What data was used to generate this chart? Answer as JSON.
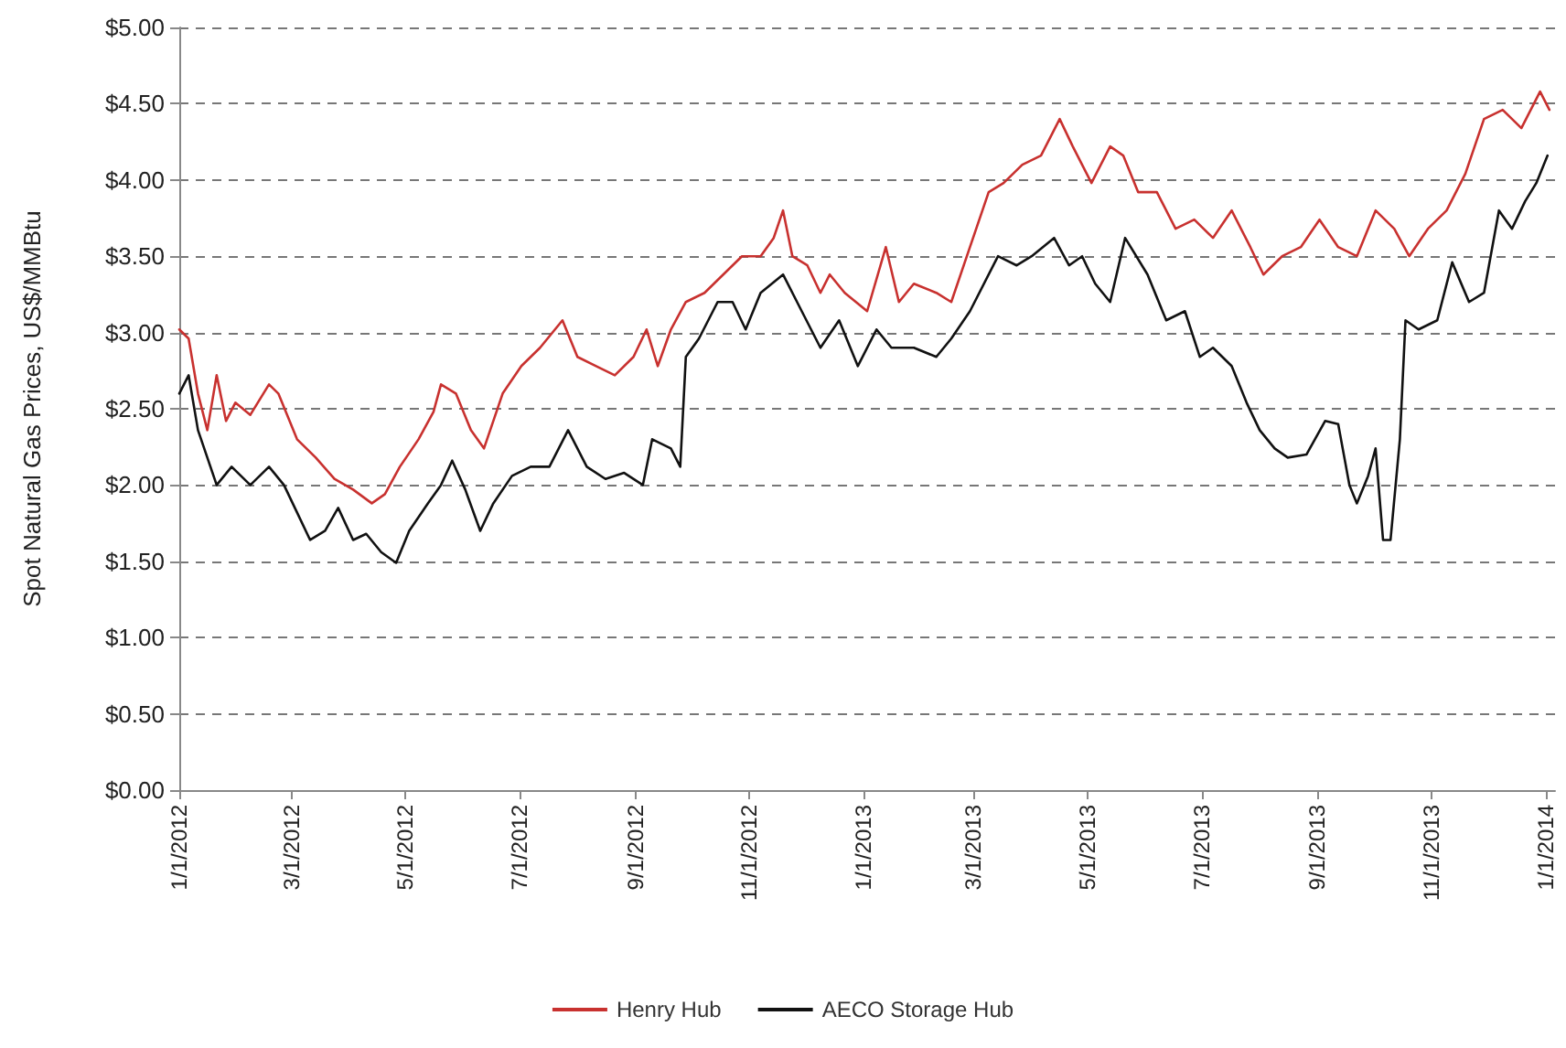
{
  "chart_data": {
    "type": "line",
    "ylabel": "Spot Natural Gas Prices, US$/MMBtu",
    "xlim": [
      "2012-01-01",
      "2014-01-06"
    ],
    "xticks": [
      {
        "value": "2012-01-01",
        "label": "1/1/2012"
      },
      {
        "value": "2012-03-01",
        "label": "3/1/2012"
      },
      {
        "value": "2012-05-01",
        "label": "5/1/2012"
      },
      {
        "value": "2012-07-01",
        "label": "7/1/2012"
      },
      {
        "value": "2012-09-01",
        "label": "9/1/2012"
      },
      {
        "value": "2012-11-01",
        "label": "11/1/2012"
      },
      {
        "value": "2013-01-01",
        "label": "1/1/2013"
      },
      {
        "value": "2013-03-01",
        "label": "3/1/2013"
      },
      {
        "value": "2013-05-01",
        "label": "5/1/2013"
      },
      {
        "value": "2013-07-01",
        "label": "7/1/2013"
      },
      {
        "value": "2013-09-01",
        "label": "9/1/2013"
      },
      {
        "value": "2013-11-01",
        "label": "11/1/2013"
      },
      {
        "value": "2014-01-01",
        "label": "1/1/2014"
      }
    ],
    "ylim": [
      0,
      5
    ],
    "yticks": [
      {
        "value": 0,
        "label": "$0.00"
      },
      {
        "value": 0.5,
        "label": "$0.50"
      },
      {
        "value": 1,
        "label": "$1.00"
      },
      {
        "value": 1.5,
        "label": "$1.50"
      },
      {
        "value": 2,
        "label": "$2.00"
      },
      {
        "value": 2.5,
        "label": "$2.50"
      },
      {
        "value": 3,
        "label": "$3.00"
      },
      {
        "value": 3.5,
        "label": "$3.50"
      },
      {
        "value": 4,
        "label": "$4.00"
      },
      {
        "value": 4.5,
        "label": "$4.50"
      },
      {
        "value": 5,
        "label": "$5.00"
      }
    ],
    "grid": "y",
    "legend": "bottom",
    "marker": "none",
    "line_style": "solid",
    "series": [
      {
        "name": "Henry Hub",
        "color": "#c8312f",
        "x": [
          "2012-01-01",
          "2012-01-06",
          "2012-01-11",
          "2012-01-16",
          "2012-01-21",
          "2012-01-26",
          "2012-01-31",
          "2012-02-08",
          "2012-02-18",
          "2012-02-23",
          "2012-03-04",
          "2012-03-14",
          "2012-03-24",
          "2012-04-03",
          "2012-04-13",
          "2012-04-20",
          "2012-04-28",
          "2012-05-08",
          "2012-05-16",
          "2012-05-20",
          "2012-05-28",
          "2012-06-05",
          "2012-06-12",
          "2012-06-22",
          "2012-07-02",
          "2012-07-12",
          "2012-07-24",
          "2012-08-01",
          "2012-08-11",
          "2012-08-21",
          "2012-08-31",
          "2012-09-07",
          "2012-09-13",
          "2012-09-20",
          "2012-09-28",
          "2012-10-08",
          "2012-10-18",
          "2012-10-28",
          "2012-11-07",
          "2012-11-14",
          "2012-11-19",
          "2012-11-24",
          "2012-12-02",
          "2012-12-09",
          "2012-12-14",
          "2012-12-22",
          "2013-01-03",
          "2013-01-13",
          "2013-01-20",
          "2013-01-28",
          "2013-02-09",
          "2013-02-17",
          "2013-02-27",
          "2013-03-09",
          "2013-03-17",
          "2013-03-27",
          "2013-04-06",
          "2013-04-16",
          "2013-04-23",
          "2013-05-03",
          "2013-05-13",
          "2013-05-20",
          "2013-05-28",
          "2013-06-07",
          "2013-06-17",
          "2013-06-27",
          "2013-07-07",
          "2013-07-17",
          "2013-07-27",
          "2013-08-03",
          "2013-08-13",
          "2013-08-23",
          "2013-09-02",
          "2013-09-12",
          "2013-09-22",
          "2013-10-02",
          "2013-10-12",
          "2013-10-20",
          "2013-10-30",
          "2013-11-09",
          "2013-11-19",
          "2013-11-29",
          "2013-12-09",
          "2013-12-19",
          "2013-12-29",
          "2014-01-03"
        ],
        "values": [
          3.02,
          2.96,
          2.6,
          2.36,
          2.72,
          2.42,
          2.54,
          2.46,
          2.66,
          2.6,
          2.3,
          2.18,
          2.04,
          1.97,
          1.88,
          1.94,
          2.12,
          2.3,
          2.48,
          2.66,
          2.6,
          2.36,
          2.24,
          2.6,
          2.78,
          2.9,
          3.08,
          2.84,
          2.78,
          2.72,
          2.84,
          3.02,
          2.78,
          3.02,
          3.2,
          3.26,
          3.38,
          3.5,
          3.5,
          3.62,
          3.8,
          3.5,
          3.44,
          3.26,
          3.38,
          3.26,
          3.14,
          3.56,
          3.2,
          3.32,
          3.26,
          3.2,
          3.56,
          3.92,
          3.98,
          4.1,
          4.16,
          4.4,
          4.22,
          3.98,
          4.22,
          4.16,
          3.92,
          3.92,
          3.68,
          3.74,
          3.62,
          3.8,
          3.56,
          3.38,
          3.5,
          3.56,
          3.74,
          3.56,
          3.5,
          3.8,
          3.68,
          3.5,
          3.68,
          3.8,
          4.04,
          4.4,
          4.46,
          4.34,
          4.58,
          4.46
        ]
      },
      {
        "name": "AECO Storage Hub",
        "color": "#111111",
        "x": [
          "2012-01-01",
          "2012-01-06",
          "2012-01-11",
          "2012-01-16",
          "2012-01-21",
          "2012-01-29",
          "2012-02-08",
          "2012-02-18",
          "2012-02-26",
          "2012-03-04",
          "2012-03-11",
          "2012-03-19",
          "2012-03-26",
          "2012-04-03",
          "2012-04-10",
          "2012-04-18",
          "2012-04-26",
          "2012-05-03",
          "2012-05-13",
          "2012-05-20",
          "2012-05-26",
          "2012-06-02",
          "2012-06-10",
          "2012-06-17",
          "2012-06-27",
          "2012-07-07",
          "2012-07-17",
          "2012-07-27",
          "2012-08-06",
          "2012-08-16",
          "2012-08-26",
          "2012-09-05",
          "2012-09-10",
          "2012-09-20",
          "2012-09-25",
          "2012-09-28",
          "2012-10-05",
          "2012-10-15",
          "2012-10-23",
          "2012-10-30",
          "2012-11-07",
          "2012-11-19",
          "2012-11-29",
          "2012-12-09",
          "2012-12-19",
          "2012-12-29",
          "2013-01-08",
          "2013-01-16",
          "2013-01-28",
          "2013-02-09",
          "2013-02-17",
          "2013-02-27",
          "2013-03-14",
          "2013-03-24",
          "2013-04-01",
          "2013-04-13",
          "2013-04-21",
          "2013-04-28",
          "2013-05-05",
          "2013-05-13",
          "2013-05-21",
          "2013-06-02",
          "2013-06-12",
          "2013-06-22",
          "2013-06-30",
          "2013-07-07",
          "2013-07-17",
          "2013-07-25",
          "2013-08-01",
          "2013-08-09",
          "2013-08-16",
          "2013-08-26",
          "2013-09-05",
          "2013-09-12",
          "2013-09-18",
          "2013-09-22",
          "2013-09-28",
          "2013-10-02",
          "2013-10-06",
          "2013-10-10",
          "2013-10-15",
          "2013-10-18",
          "2013-10-25",
          "2013-11-04",
          "2013-11-12",
          "2013-11-21",
          "2013-11-29",
          "2013-12-07",
          "2013-12-14",
          "2013-12-21",
          "2013-12-27",
          "2014-01-02"
        ],
        "values": [
          2.6,
          2.72,
          2.36,
          2.18,
          2.0,
          2.12,
          2.0,
          2.12,
          2.0,
          1.82,
          1.64,
          1.7,
          1.85,
          1.64,
          1.68,
          1.56,
          1.49,
          1.7,
          1.88,
          2.0,
          2.16,
          1.97,
          1.7,
          1.88,
          2.06,
          2.12,
          2.12,
          2.36,
          2.12,
          2.04,
          2.08,
          2.0,
          2.3,
          2.24,
          2.12,
          2.84,
          2.96,
          3.2,
          3.2,
          3.02,
          3.26,
          3.38,
          3.14,
          2.9,
          3.08,
          2.78,
          3.02,
          2.9,
          2.9,
          2.84,
          2.96,
          3.14,
          3.5,
          3.44,
          3.5,
          3.62,
          3.44,
          3.5,
          3.32,
          3.2,
          3.62,
          3.38,
          3.08,
          3.14,
          2.84,
          2.9,
          2.78,
          2.54,
          2.36,
          2.24,
          2.18,
          2.2,
          2.42,
          2.4,
          2.0,
          1.88,
          2.06,
          2.24,
          1.64,
          1.64,
          2.3,
          3.08,
          3.02,
          3.08,
          3.46,
          3.2,
          3.26,
          3.8,
          3.68,
          3.86,
          3.98,
          4.16
        ]
      }
    ]
  }
}
